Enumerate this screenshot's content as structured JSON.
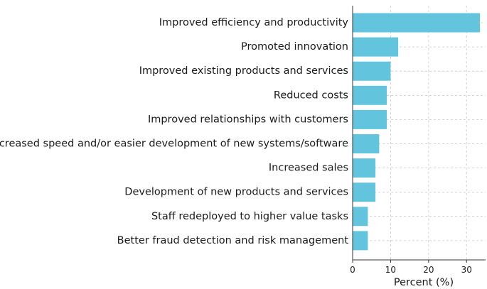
{
  "chart_data": {
    "type": "bar",
    "orientation": "horizontal",
    "categories": [
      "Improved efficiency and productivity",
      "Promoted innovation",
      "Improved existing products and services",
      "Reduced costs",
      "Improved relationships with customers",
      "Increased speed and/or easier development of new systems/software",
      "Increased sales",
      "Development of new products and services",
      "Staff redeployed to higher value tasks",
      "Better fraud detection and risk management"
    ],
    "values": [
      33.5,
      12,
      10,
      9,
      9,
      7,
      6,
      6,
      4,
      4
    ],
    "xlabel": "Percent (%)",
    "ylabel": "",
    "title": "",
    "xlim": [
      0,
      35
    ],
    "xticks": [
      0,
      10,
      20,
      30
    ],
    "grid": true,
    "bar_color": "#62c5dd"
  }
}
